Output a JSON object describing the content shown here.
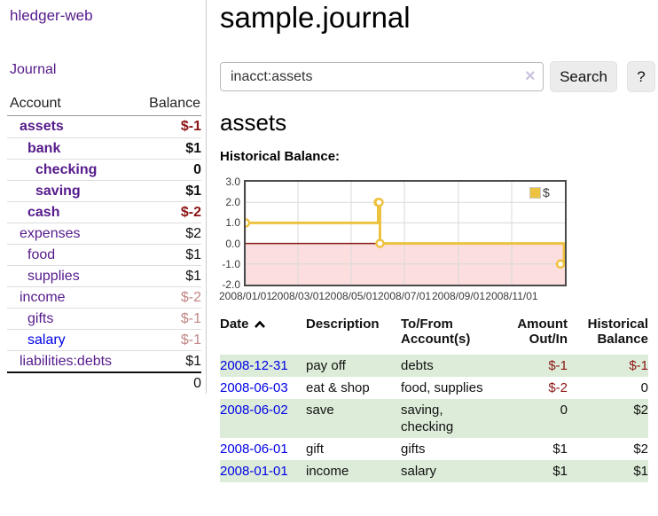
{
  "app": {
    "title": "hledger-web"
  },
  "sidebar": {
    "journal_link": "Journal",
    "accounts": {
      "col_account": "Account",
      "col_balance": "Balance",
      "rows": [
        {
          "name": "assets",
          "depth": 0,
          "balance": "$-1",
          "in_filter": true,
          "balance_style": "negative"
        },
        {
          "name": "bank",
          "depth": 1,
          "balance": "$1",
          "in_filter": true,
          "balance_style": "normal"
        },
        {
          "name": "checking",
          "depth": 2,
          "balance": "0",
          "in_filter": true,
          "balance_style": "normal"
        },
        {
          "name": "saving",
          "depth": 2,
          "balance": "$1",
          "in_filter": true,
          "balance_style": "normal"
        },
        {
          "name": "cash",
          "depth": 1,
          "balance": "$-2",
          "in_filter": true,
          "balance_style": "negative"
        },
        {
          "name": "expenses",
          "depth": 0,
          "balance": "$2",
          "in_filter": false,
          "balance_style": "normal"
        },
        {
          "name": "food",
          "depth": 1,
          "balance": "$1",
          "in_filter": false,
          "balance_style": "normal"
        },
        {
          "name": "supplies",
          "depth": 1,
          "balance": "$1",
          "in_filter": false,
          "balance_style": "normal"
        },
        {
          "name": "income",
          "depth": 0,
          "balance": "$-2",
          "in_filter": false,
          "balance_style": "negative-dim"
        },
        {
          "name": "gifts",
          "depth": 1,
          "balance": "$-1",
          "in_filter": false,
          "balance_style": "negative-dim"
        },
        {
          "name": "salary",
          "depth": 1,
          "balance": "$-1",
          "in_filter": false,
          "balance_style": "negative-dim",
          "link_style": "unvisited"
        },
        {
          "name": "liabilities:debts",
          "depth": 0,
          "balance": "$1",
          "in_filter": false,
          "balance_style": "normal"
        }
      ],
      "total": "0"
    }
  },
  "main": {
    "title": "sample.journal",
    "search": {
      "value": "inacct:assets",
      "clear_icon": "×",
      "search_button": "Search",
      "help_button": "?"
    },
    "account_heading": "assets",
    "chart_heading": "Historical Balance:"
  },
  "register": {
    "headers": {
      "date": "Date",
      "description": "Description",
      "accounts": "To/From\nAccount(s)",
      "amount": "Amount\nOut/In",
      "balance": "Historical\nBalance"
    },
    "sort": "ascending",
    "rows": [
      {
        "date": "2008-12-31",
        "description": "pay off",
        "accounts": "debts",
        "amount": "$-1",
        "balance": "$-1"
      },
      {
        "date": "2008-06-03",
        "description": "eat & shop",
        "accounts": "food, supplies",
        "amount": "$-2",
        "balance": "0"
      },
      {
        "date": "2008-06-02",
        "description": "save",
        "accounts": "saving,\nchecking",
        "amount": "0",
        "balance": "$2"
      },
      {
        "date": "2008-06-01",
        "description": "gift",
        "accounts": "gifts",
        "amount": "$1",
        "balance": "$2"
      },
      {
        "date": "2008-01-01",
        "description": "income",
        "accounts": "salary",
        "amount": "$1",
        "balance": "$1"
      }
    ]
  },
  "chart_data": {
    "type": "line",
    "step": true,
    "title": "Historical Balance:",
    "series": [
      {
        "name": "$",
        "color": "#edc240",
        "points": [
          [
            "2008-01-01",
            1
          ],
          [
            "2008-06-01",
            2
          ],
          [
            "2008-06-02",
            2
          ],
          [
            "2008-06-03",
            0
          ],
          [
            "2008-12-31",
            -1
          ]
        ]
      }
    ],
    "x_start": "2008-01-01",
    "x_days": 366,
    "x_ticks": [
      {
        "label": "2008/01/01",
        "date": "2008-01-01"
      },
      {
        "label": "2008/03/01",
        "date": "2008-03-01"
      },
      {
        "label": "2008/05/01",
        "date": "2008-05-01"
      },
      {
        "label": "2008/07/01",
        "date": "2008-07-01"
      },
      {
        "label": "2008/09/01",
        "date": "2008-09-01"
      },
      {
        "label": "2008/11/01",
        "date": "2008-11-01"
      }
    ],
    "y_ticks": [
      {
        "label": "3.0",
        "value": 3
      },
      {
        "label": "2.0",
        "value": 2
      },
      {
        "label": "1.0",
        "value": 1
      },
      {
        "label": "0.0",
        "value": 0
      },
      {
        "label": "-1.0",
        "value": -1
      },
      {
        "label": "-2.0",
        "value": -2
      }
    ],
    "ylim": [
      -2,
      3
    ],
    "legend": {
      "label": "$",
      "position": "top-right"
    },
    "zero_line_color": "#8b1a1a",
    "negative_band_color": "#fcdede",
    "grid_color": "#d9d9d9",
    "border_color": "#4a4a4a",
    "marker_fill": "#ffffff"
  }
}
